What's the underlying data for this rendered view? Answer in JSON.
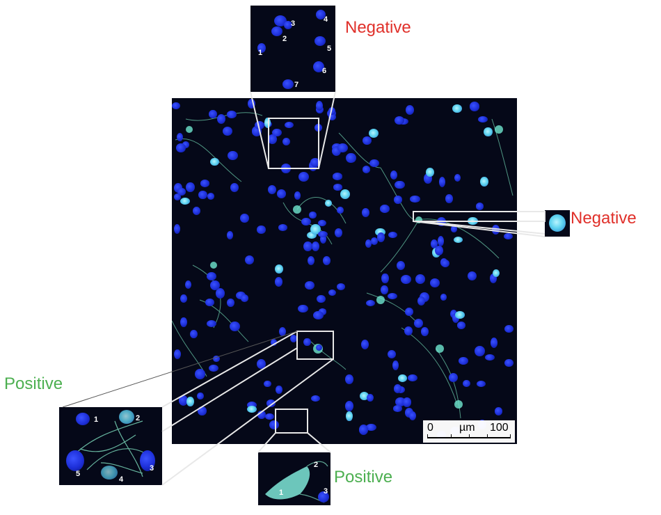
{
  "labels": {
    "top_inset": "Negative",
    "right_inset": "Negative",
    "left_inset": "Positive",
    "bottom_inset": "Positive"
  },
  "top_inset_numbers": [
    "1",
    "2",
    "3",
    "4",
    "5",
    "6",
    "7"
  ],
  "left_inset_numbers": [
    "1",
    "2",
    "3",
    "4",
    "5"
  ],
  "bottom_inset_numbers": [
    "1",
    "2",
    "3"
  ],
  "scale_bar": {
    "start": "0",
    "unit": "µm",
    "end": "100"
  },
  "colors": {
    "negative": "#e0302a",
    "positive": "#4caf50",
    "nuclei": "#2233ee",
    "fibers": "#7fe0c0"
  }
}
